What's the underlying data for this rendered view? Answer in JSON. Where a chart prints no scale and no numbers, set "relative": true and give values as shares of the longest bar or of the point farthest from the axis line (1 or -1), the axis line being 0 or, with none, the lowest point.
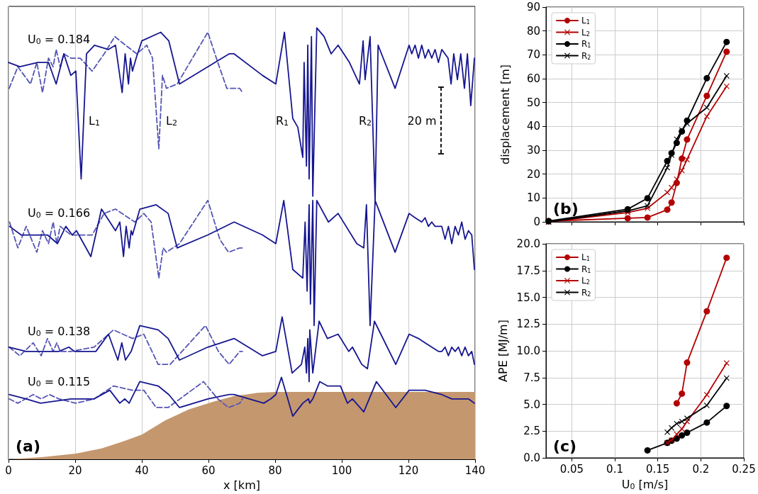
{
  "chart_data": [
    {
      "type": "line",
      "relative": true,
      "xlabel": "x [km]",
      "xlim": [
        0,
        140
      ],
      "xticks": [
        0,
        20,
        40,
        60,
        80,
        100,
        120,
        140
      ],
      "grid": "x",
      "tick_labels": "x",
      "annotations": [
        "(a)",
        "U$_{0}$ = 0.184",
        "U$_{0}$ = 0.166",
        "U$_{0}$ = 0.138",
        "U$_{0}$ = 0.115",
        "L$_{1}$",
        "L$_{2}$",
        "R$_{1}$",
        "R$_{2}$",
        "20 m"
      ],
      "series": [
        {
          "type": "area",
          "color": "#c4976e",
          "x": [
            0,
            10,
            20.2,
            27.9,
            34.3,
            40,
            47,
            54.2,
            61.3,
            68.3,
            70.4,
            74.7,
            80,
            140
          ],
          "values": [
            0,
            0.005,
            0.013,
            0.025,
            0.041,
            0.057,
            0.09,
            0.116,
            0.133,
            0.148,
            0.149,
            0.154,
            0.156,
            0.156
          ]
        },
        {
          "color": "#5555b5",
          "line_style": "dashed",
          "x": [
            0.2,
            2.8,
            6.6,
            8.5,
            10.2,
            12,
            13.4,
            14.3,
            15.5,
            16.6,
            18.7,
            21.5,
            25.1,
            28.7,
            31.9,
            35.1,
            38.5,
            41.5,
            43.2,
            45.1,
            46.2,
            47.4,
            50.6,
            59.8,
            62.8,
            65.5,
            69.4,
            70.2
          ],
          "values": [
            0.86,
            0.91,
            0.87,
            0.92,
            0.85,
            0.93,
            0.91,
            0.95,
            0.91,
            0.94,
            0.93,
            0.93,
            0.9,
            0.94,
            0.98,
            0.96,
            0.94,
            0.96,
            0.93,
            0.72,
            0.89,
            0.86,
            0.87,
            0.99,
            0.92,
            0.86,
            0.86,
            0.85
          ]
        },
        {
          "color": "#5555b5",
          "line_style": "dashed",
          "x": [
            0.3,
            2.8,
            5.3,
            8.5,
            10.2,
            12,
            13.4,
            14.5,
            15.5,
            18.7,
            21.5,
            25.1,
            28.7,
            32.1,
            37.9,
            40.6,
            42.8,
            45.1,
            46.4,
            47.4,
            51.3,
            59.8,
            63.4,
            66,
            69.4,
            70.2
          ],
          "values": [
            0.55,
            0.49,
            0.54,
            0.48,
            0.53,
            0.5,
            0.55,
            0.5,
            0.54,
            0.52,
            0.52,
            0.52,
            0.57,
            0.58,
            0.55,
            0.57,
            0.55,
            0.42,
            0.49,
            0.48,
            0.5,
            0.6,
            0.51,
            0.48,
            0.49,
            0.49
          ]
        },
        {
          "color": "#5555b5",
          "line_style": "dashed",
          "x": [
            0.2,
            3.4,
            7.4,
            9.8,
            11.7,
            13.4,
            14.5,
            15.5,
            18.7,
            25.7,
            31.5,
            37.2,
            40.6,
            44.9,
            48.5,
            59.1,
            63,
            66.2,
            69.4,
            70.2
          ],
          "values": [
            0.26,
            0.24,
            0.27,
            0.24,
            0.28,
            0.25,
            0.27,
            0.25,
            0.25,
            0.26,
            0.3,
            0.28,
            0.29,
            0.22,
            0.22,
            0.31,
            0.25,
            0.22,
            0.25,
            0.25
          ]
        },
        {
          "color": "#5555b5",
          "line_style": "dashed",
          "x": [
            0.2,
            2.8,
            7.4,
            9.8,
            12.3,
            15.1,
            20.2,
            25.7,
            31.5,
            37.2,
            40.6,
            44.3,
            47.9,
            58.5,
            62.8,
            66,
            69.4,
            70.2
          ],
          "values": [
            0.14,
            0.13,
            0.15,
            0.14,
            0.15,
            0.14,
            0.13,
            0.14,
            0.17,
            0.16,
            0.16,
            0.12,
            0.12,
            0.18,
            0.14,
            0.12,
            0.13,
            0.14
          ]
        },
        {
          "color": "#161690",
          "line_style": "solid",
          "x": [
            0,
            3.4,
            8.8,
            12,
            14.3,
            16.6,
            18.7,
            20.2,
            21.8,
            23.4,
            25.8,
            30,
            32.1,
            34.1,
            35,
            36,
            36.6,
            37.2,
            38.3,
            40,
            45.7,
            48.1,
            51.3,
            59.8,
            66.2,
            67.7,
            76.2,
            80.2,
            82.8,
            85.3,
            86.8,
            88.3,
            88.7,
            89.4,
            89.8,
            90.2,
            90.9,
            91.3,
            92.5,
            94.7,
            96.8,
            98.9,
            102.3,
            105.3,
            106.4,
            107,
            108.5,
            110,
            110.9,
            116,
            120.2,
            121,
            122,
            123,
            124,
            125,
            126,
            127,
            128,
            129,
            130,
            131.9,
            132.8,
            133.6,
            134.7,
            135.7,
            136.8,
            137.7,
            138.7,
            139.8
          ],
          "values": [
            0.92,
            0.91,
            0.92,
            0.92,
            0.87,
            0.94,
            0.89,
            0.9,
            0.65,
            0.94,
            0.96,
            0.95,
            0.96,
            0.85,
            0.94,
            0.87,
            0.93,
            0.9,
            0.93,
            0.97,
            0.99,
            0.97,
            0.87,
            0.91,
            0.94,
            0.94,
            0.89,
            0.87,
            0.99,
            0.79,
            0.77,
            0.7,
            0.92,
            0.68,
            0.96,
            0.65,
            0.98,
            0.61,
            1.0,
            0.98,
            0.94,
            0.96,
            0.92,
            0.87,
            0.97,
            0.88,
            0.98,
            0.6,
            0.96,
            0.86,
            0.96,
            0.94,
            0.96,
            0.93,
            0.96,
            0.93,
            0.95,
            0.93,
            0.95,
            0.92,
            0.95,
            0.93,
            0.87,
            0.94,
            0.88,
            0.94,
            0.86,
            0.94,
            0.82,
            0.93
          ]
        },
        {
          "color": "#161690",
          "line_style": "solid",
          "x": [
            0.3,
            3.8,
            11.7,
            14.7,
            17.2,
            19.1,
            20.4,
            24.7,
            27.9,
            32.1,
            33.4,
            34.5,
            35.3,
            36.2,
            36.8,
            37.2,
            39.4,
            44.3,
            47.9,
            50.6,
            59.8,
            67.7,
            76.2,
            80.2,
            82.6,
            85.3,
            88.3,
            89,
            89.6,
            90.2,
            90.6,
            91.3,
            91.7,
            92.5,
            96,
            98.9,
            104.5,
            106.6,
            107.4,
            108.5,
            110,
            116,
            120.2,
            122,
            124,
            125,
            126,
            127,
            128,
            130,
            131,
            132,
            133,
            134,
            135,
            136,
            137,
            138,
            139,
            139.8
          ],
          "values": [
            0.54,
            0.52,
            0.52,
            0.5,
            0.54,
            0.52,
            0.53,
            0.47,
            0.58,
            0.53,
            0.55,
            0.47,
            0.54,
            0.49,
            0.53,
            0.52,
            0.58,
            0.59,
            0.57,
            0.49,
            0.52,
            0.55,
            0.52,
            0.5,
            0.6,
            0.44,
            0.42,
            0.55,
            0.39,
            0.59,
            0.36,
            0.6,
            0.31,
            0.6,
            0.55,
            0.57,
            0.5,
            0.49,
            0.59,
            0.31,
            0.6,
            0.48,
            0.57,
            0.56,
            0.55,
            0.56,
            0.54,
            0.55,
            0.54,
            0.54,
            0.51,
            0.54,
            0.5,
            0.54,
            0.52,
            0.55,
            0.51,
            0.53,
            0.52,
            0.44
          ]
        },
        {
          "color": "#161690",
          "line_style": "solid",
          "x": [
            0.2,
            5.3,
            15.1,
            18.1,
            19.8,
            22,
            26.2,
            30,
            32.8,
            34,
            35.1,
            36.8,
            39.4,
            44.9,
            47.9,
            51.3,
            59.8,
            67.7,
            76.2,
            80.2,
            82.1,
            85.1,
            87.9,
            88.9,
            89.4,
            89.8,
            90.2,
            90.4,
            91.3,
            93.2,
            95.7,
            98.9,
            102.1,
            103.2,
            106,
            107.7,
            109.8,
            116.2,
            120.2,
            123,
            125,
            127,
            129,
            130,
            131,
            132,
            133,
            134,
            135,
            136,
            137,
            138,
            139,
            139.8
          ],
          "values": [
            0.26,
            0.25,
            0.25,
            0.26,
            0.25,
            0.25,
            0.25,
            0.29,
            0.23,
            0.27,
            0.23,
            0.25,
            0.31,
            0.3,
            0.28,
            0.23,
            0.26,
            0.28,
            0.24,
            0.25,
            0.33,
            0.2,
            0.22,
            0.26,
            0.2,
            0.28,
            0.18,
            0.3,
            0.2,
            0.32,
            0.28,
            0.29,
            0.25,
            0.26,
            0.22,
            0.21,
            0.32,
            0.22,
            0.29,
            0.28,
            0.27,
            0.26,
            0.25,
            0.25,
            0.26,
            0.24,
            0.26,
            0.25,
            0.26,
            0.24,
            0.26,
            0.24,
            0.25,
            0.22
          ]
        },
        {
          "color": "#161690",
          "line_style": "solid",
          "x": [
            0.2,
            5.3,
            9.6,
            18.7,
            25.7,
            30.4,
            33.4,
            34.9,
            36.2,
            39.4,
            44.9,
            48.1,
            51.3,
            59.8,
            66.2,
            67.7,
            76.6,
            78.7,
            80.2,
            81.9,
            85.3,
            88.3,
            90,
            90.4,
            91.3,
            93.4,
            95.7,
            99.6,
            101.7,
            103.2,
            106.6,
            110.4,
            116.2,
            120.2,
            125,
            130,
            133,
            136,
            138,
            139.8
          ],
          "values": [
            0.15,
            0.14,
            0.13,
            0.14,
            0.14,
            0.16,
            0.13,
            0.14,
            0.13,
            0.18,
            0.17,
            0.15,
            0.12,
            0.14,
            0.15,
            0.15,
            0.13,
            0.14,
            0.15,
            0.19,
            0.1,
            0.13,
            0.14,
            0.13,
            0.14,
            0.18,
            0.17,
            0.17,
            0.13,
            0.14,
            0.11,
            0.18,
            0.12,
            0.16,
            0.16,
            0.15,
            0.14,
            0.14,
            0.14,
            0.13
          ]
        }
      ]
    },
    {
      "type": "line",
      "ylabel": "displacement [m]",
      "xlim": [
        0.02,
        0.25
      ],
      "xticks": [
        0.05,
        0.1,
        0.15,
        0.2,
        0.25
      ],
      "ylim": [
        0,
        90
      ],
      "yticks": [
        0,
        10,
        20,
        30,
        40,
        50,
        60,
        70,
        80,
        90
      ],
      "grid": true,
      "tick_labels": "y",
      "legend": "top left",
      "annotations": [
        "(b)"
      ],
      "x": [
        0.023,
        0.115,
        0.138,
        0.161,
        0.166,
        0.172,
        0.178,
        0.184,
        0.207,
        0.23
      ],
      "series": [
        {
          "name": "L$_{1}$",
          "color": "#b30000",
          "marker": "circle",
          "values": [
            0.3,
            1.5,
            1.8,
            5.1,
            8.1,
            16.3,
            26.5,
            34.5,
            52.8,
            71.3
          ]
        },
        {
          "name": "L$_{2}$",
          "color": "#b30000",
          "marker": "cross",
          "values": [
            0,
            3.9,
            5.7,
            12.3,
            14.3,
            17.8,
            21.5,
            26.1,
            44.2,
            56.8
          ]
        },
        {
          "name": "R$_{1}$",
          "color": "#000000",
          "marker": "circle",
          "values": [
            0.3,
            5.3,
            9.9,
            25.5,
            28.8,
            33.1,
            37.9,
            42.4,
            60.2,
            75.4
          ]
        },
        {
          "name": "R$_{2}$",
          "color": "#000000",
          "marker": "cross",
          "values": [
            0,
            4.6,
            6.7,
            22.7,
            28,
            34.6,
            38.5,
            41.2,
            47.9,
            61.2
          ]
        }
      ]
    },
    {
      "type": "line",
      "xlabel": "U$_{0}$ [m/s]",
      "ylabel": "APE [MJ/m]",
      "xlim": [
        0.02,
        0.25
      ],
      "xticks": [
        0.05,
        0.1,
        0.15,
        0.2,
        0.25
      ],
      "ylim": [
        0,
        20
      ],
      "yticks": [
        {
          "value": 0,
          "label": "0.0"
        },
        {
          "value": 2.5,
          "label": "2.5"
        },
        {
          "value": 5,
          "label": "5.0"
        },
        {
          "value": 7.5,
          "label": "7.5"
        },
        {
          "value": 10,
          "label": "10.0"
        },
        {
          "value": 12.5,
          "label": "12.5"
        },
        {
          "value": 15,
          "label": "15.0"
        },
        {
          "value": 17.5,
          "label": "17.5"
        },
        {
          "value": 20,
          "label": "20.0"
        }
      ],
      "grid": true,
      "legend": "top left",
      "annotations": [
        "(c)"
      ],
      "series": [
        {
          "name": "L$_{1}$",
          "color": "#b30000",
          "marker": "circle",
          "x": [
            0.172,
            0.178,
            0.184,
            0.207,
            0.23
          ],
          "values": [
            5.1,
            6.0,
            8.9,
            13.7,
            18.7
          ]
        },
        {
          "name": "R$_{1}$",
          "color": "#000000",
          "marker": "circle",
          "x": [
            0.138,
            0.161,
            0.166,
            0.172,
            0.178,
            0.184,
            0.207,
            0.23
          ],
          "values": [
            0.7,
            1.4,
            1.6,
            1.8,
            2.1,
            2.35,
            3.3,
            4.85
          ]
        },
        {
          "name": "L$_{2}$",
          "color": "#b30000",
          "marker": "cross",
          "x": [
            0.161,
            0.166,
            0.172,
            0.178,
            0.184,
            0.207,
            0.23
          ],
          "values": [
            1.4,
            1.65,
            2.2,
            2.7,
            3.4,
            5.9,
            8.85
          ]
        },
        {
          "name": "R$_{2}$",
          "color": "#000000",
          "marker": "cross",
          "x": [
            0.161,
            0.166,
            0.172,
            0.178,
            0.184,
            0.207,
            0.23
          ],
          "values": [
            2.4,
            2.8,
            3.2,
            3.4,
            3.7,
            4.9,
            7.45
          ]
        }
      ]
    }
  ]
}
